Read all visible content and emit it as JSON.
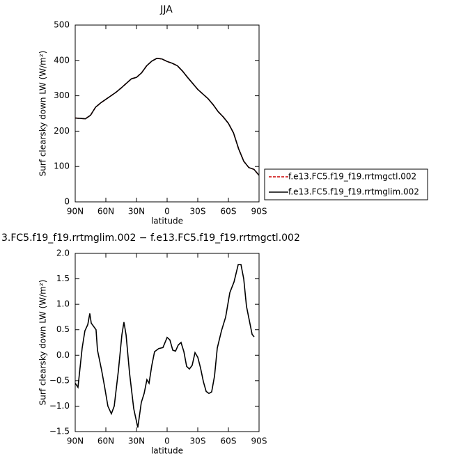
{
  "chart_data": [
    {
      "type": "line",
      "title": "JJA",
      "ylabel": "Surf clearsky down LW (W/m²)",
      "xlabel": "latitude",
      "x": [
        90,
        85,
        80,
        75,
        70,
        65,
        60,
        55,
        50,
        45,
        40,
        35,
        30,
        25,
        20,
        15,
        10,
        5,
        0,
        -5,
        -10,
        -15,
        -20,
        -25,
        -30,
        -35,
        -40,
        -45,
        -50,
        -55,
        -60,
        -65,
        -70,
        -75,
        -80,
        -85,
        -90
      ],
      "xlim": [
        90,
        -90
      ],
      "xticks": [
        {
          "value": 90,
          "label": "90N"
        },
        {
          "value": 60,
          "label": "60N"
        },
        {
          "value": 30,
          "label": "30N"
        },
        0,
        {
          "value": -30,
          "label": "30S"
        },
        {
          "value": -60,
          "label": "60S"
        },
        {
          "value": -90,
          "label": "90S"
        }
      ],
      "ylim": [
        0,
        500
      ],
      "yticks": [
        0,
        100,
        200,
        300,
        400,
        500
      ],
      "legend": "right",
      "series": [
        {
          "name": "f.e13.FC5.f19_f19.rrtmgctl.002",
          "color": "#cc0000",
          "dash": true,
          "values": [
            237,
            236,
            235,
            245,
            268,
            280,
            290,
            300,
            310,
            322,
            335,
            348,
            352,
            365,
            385,
            398,
            406,
            404,
            397,
            392,
            385,
            370,
            352,
            335,
            318,
            305,
            292,
            275,
            255,
            240,
            222,
            195,
            150,
            115,
            97,
            92,
            75
          ]
        },
        {
          "name": "f.e13.FC5.f19_f19.rrtmglim.002",
          "color": "#000000",
          "dash": false,
          "values": [
            237,
            236,
            235,
            245,
            268,
            280,
            290,
            300,
            310,
            322,
            335,
            348,
            352,
            365,
            385,
            398,
            406,
            404,
            397,
            392,
            385,
            370,
            352,
            335,
            318,
            305,
            292,
            275,
            255,
            240,
            222,
            195,
            150,
            115,
            97,
            92,
            75
          ]
        }
      ]
    },
    {
      "type": "line",
      "title": "3.FC5.f19_f19.rrtmglim.002 − f.e13.FC5.f19_f19.rrtmgctl.002",
      "ylabel": "Surf clearsky down LW (W/m²)",
      "xlabel": "latitude",
      "x": [
        90,
        87.3,
        83.2,
        80.5,
        77.7,
        75.7,
        74.3,
        69.6,
        68.2,
        64.1,
        61.4,
        58,
        54.6,
        51.8,
        47.7,
        44.3,
        42.3,
        40.2,
        36.8,
        32.7,
        28.7,
        25.3,
        22.5,
        19.8,
        17.7,
        15,
        12.3,
        8.2,
        4.1,
        0,
        -2.7,
        -5.5,
        -8.2,
        -10.9,
        -13.6,
        -16.4,
        -19.1,
        -21.8,
        -24.5,
        -27.3,
        -30,
        -32.7,
        -35.5,
        -38.2,
        -40.9,
        -43.6,
        -46.4,
        -49.1,
        -53.2,
        -57.3,
        -61.4,
        -65.5,
        -69.6,
        -72.3,
        -75,
        -77.7,
        -80.5,
        -83.2,
        -85.2
      ],
      "xlim": [
        90,
        -90
      ],
      "xticks": [
        {
          "value": 90,
          "label": "90N"
        },
        {
          "value": 60,
          "label": "60N"
        },
        {
          "value": 30,
          "label": "30N"
        },
        0,
        {
          "value": -30,
          "label": "30S"
        },
        {
          "value": -60,
          "label": "60S"
        },
        {
          "value": -90,
          "label": "90S"
        }
      ],
      "ylim": [
        -1.5,
        2.0
      ],
      "yticks": [
        {
          "value": -1.5,
          "label": "−1.5"
        },
        {
          "value": -1.0,
          "label": "−1.0"
        },
        {
          "value": -0.5,
          "label": "−0.5"
        },
        {
          "value": 0,
          "label": "0.0"
        },
        0.5,
        {
          "value": 1.0,
          "label": "1.0"
        },
        1.5,
        {
          "value": 2.0,
          "label": "2.0"
        }
      ],
      "color": "#000000",
      "values": [
        -0.55,
        -0.63,
        0.14,
        0.48,
        0.6,
        0.82,
        0.63,
        0.5,
        0.1,
        -0.3,
        -0.6,
        -1.0,
        -1.15,
        -1.0,
        -0.3,
        0.4,
        0.65,
        0.4,
        -0.35,
        -1.05,
        -1.42,
        -0.93,
        -0.75,
        -0.48,
        -0.55,
        -0.2,
        0.07,
        0.13,
        0.15,
        0.35,
        0.3,
        0.1,
        0.08,
        0.2,
        0.25,
        0.07,
        -0.22,
        -0.27,
        -0.2,
        0.05,
        -0.04,
        -0.25,
        -0.52,
        -0.71,
        -0.75,
        -0.72,
        -0.41,
        0.14,
        0.48,
        0.75,
        1.23,
        1.44,
        1.78,
        1.78,
        1.5,
        0.96,
        0.68,
        0.41,
        0.36
      ]
    }
  ]
}
